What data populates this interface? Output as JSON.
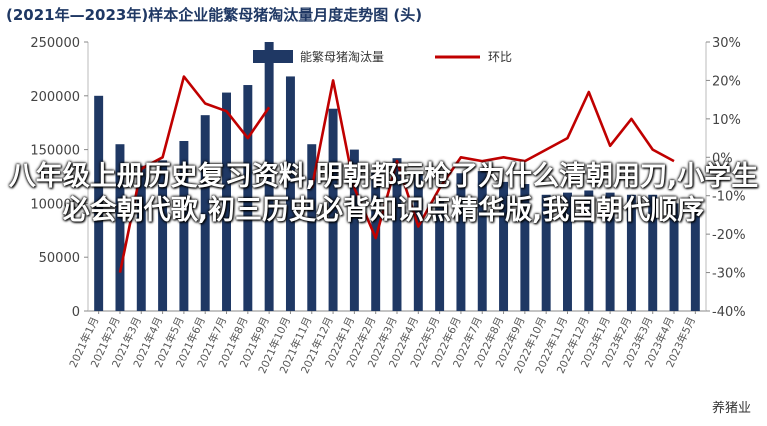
{
  "chart_data": {
    "type": "bar",
    "title": "(2021年—2023年)样本企业能繁母猪淘汰量月度走势图 (头)",
    "categories": [
      "2021年1月",
      "2021年2月",
      "2021年3月",
      "2021年4月",
      "2021年5月",
      "2021年6月",
      "2021年7月",
      "2021年8月",
      "2021年9月",
      "2021年10月",
      "2021年11月",
      "2021年12月",
      "2022年1月",
      "2022年2月",
      "2022年3月",
      "2022年4月",
      "2022年5月",
      "2022年6月",
      "2022年7月",
      "2022年8月",
      "2022年9月",
      "2022年10月",
      "2022年11月",
      "2022年12月",
      "2023年1月",
      "2023年2月",
      "2023年3月",
      "2023年4月",
      "2023年5月"
    ],
    "series": [
      {
        "name": "能繁母猪淘汰量",
        "axis": "left",
        "kind": "bar",
        "color": "#1f3864",
        "values": [
          200000,
          155000,
          135000,
          140000,
          158000,
          182000,
          203000,
          210000,
          250000,
          218000,
          155000,
          188000,
          150000,
          130000,
          142000,
          130000,
          105000,
          128000,
          130000,
          120000,
          118000,
          108000,
          110000,
          112000,
          110000,
          108000,
          108000,
          100000,
          95000
        ]
      },
      {
        "name": "环比",
        "axis": "right",
        "kind": "line",
        "color": "#c00000",
        "values": [
          null,
          -30,
          -3,
          0,
          21,
          14,
          12,
          5,
          13,
          null,
          -8,
          20,
          -8,
          -21,
          -1,
          -18,
          -8,
          0,
          -1,
          0,
          -1,
          2,
          5,
          17,
          3,
          10,
          2,
          -1,
          null
        ]
      }
    ],
    "ylim_left": [
      0,
      250000
    ],
    "ylim_right": [
      -40,
      30
    ],
    "yticks_left": [
      "0",
      "50000",
      "100000",
      "150000",
      "200000",
      "250000"
    ],
    "yticks_right": [
      "-40%",
      "-30%",
      "-20%",
      "-10%",
      "0%",
      "10%",
      "20%",
      "30%"
    ],
    "legend_position": "top-center",
    "grid": false
  },
  "overlay_text": "八年级上册历史复习资料,明朝都玩枪了为什么清朝用刀,小学生必会朝代歌,初三历史必背知识点精华版,我国朝代顺序",
  "watermark": "养猪业"
}
